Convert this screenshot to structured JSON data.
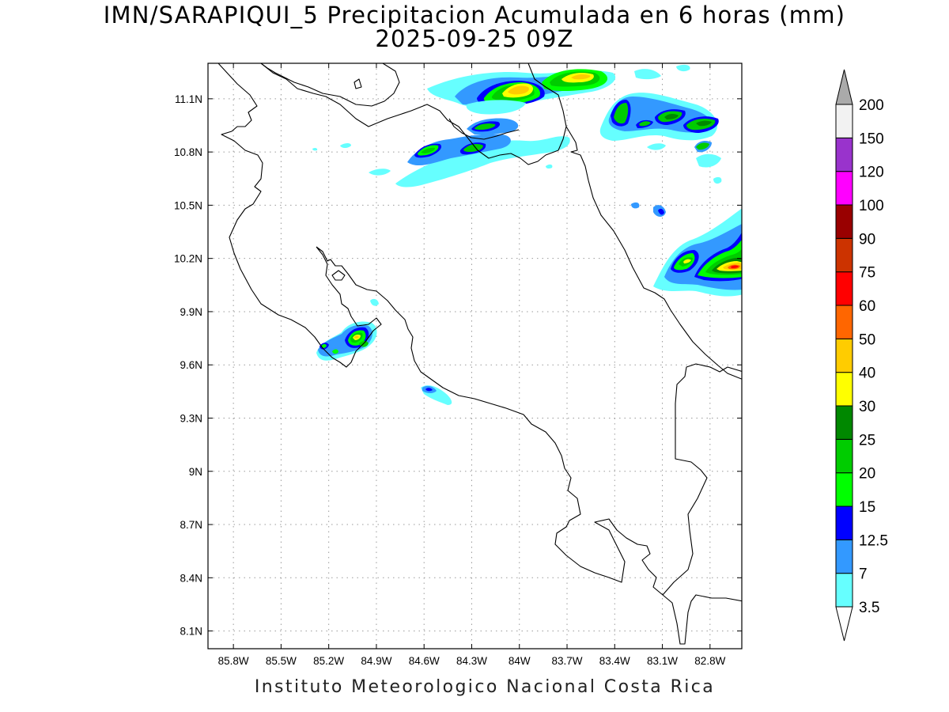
{
  "title": {
    "line1": "IMN/SARAPIQUI_5 Precipitacion Acumulada en 6 horas (mm)",
    "line2": "2025-09-25 09Z"
  },
  "footer": "Instituto Meteorologico Nacional Costa Rica",
  "map": {
    "lon_range": [
      -85.96,
      -82.6
    ],
    "lat_range": [
      8.0,
      11.3
    ],
    "lon_ticks": [
      {
        "value": -85.8,
        "label": "85.8W"
      },
      {
        "value": -85.5,
        "label": "85.5W"
      },
      {
        "value": -85.2,
        "label": "85.2W"
      },
      {
        "value": -84.9,
        "label": "84.9W"
      },
      {
        "value": -84.6,
        "label": "84.6W"
      },
      {
        "value": -84.3,
        "label": "84.3W"
      },
      {
        "value": -84.0,
        "label": "84W"
      },
      {
        "value": -83.7,
        "label": "83.7W"
      },
      {
        "value": -83.4,
        "label": "83.4W"
      },
      {
        "value": -83.1,
        "label": "83.1W"
      },
      {
        "value": -82.8,
        "label": "82.8W"
      }
    ],
    "lat_ticks": [
      {
        "value": 11.1,
        "label": "11.1N"
      },
      {
        "value": 10.8,
        "label": "10.8N"
      },
      {
        "value": 10.5,
        "label": "10.5N"
      },
      {
        "value": 10.2,
        "label": "10.2N"
      },
      {
        "value": 9.9,
        "label": "9.9N"
      },
      {
        "value": 9.6,
        "label": "9.6N"
      },
      {
        "value": 9.3,
        "label": "9.3N"
      },
      {
        "value": 9.0,
        "label": "9N"
      },
      {
        "value": 8.7,
        "label": "8.7N"
      },
      {
        "value": 8.4,
        "label": "8.4N"
      },
      {
        "value": 8.1,
        "label": "8.1N"
      }
    ],
    "grid": true
  },
  "colorbar": {
    "units": "mm",
    "levels": [
      {
        "value": "3.5",
        "color": "#66ffff"
      },
      {
        "value": "7",
        "color": "#3399ff"
      },
      {
        "value": "12.5",
        "color": "#0000ff"
      },
      {
        "value": "15",
        "color": "#00ff00"
      },
      {
        "value": "20",
        "color": "#00cc00"
      },
      {
        "value": "25",
        "color": "#008800"
      },
      {
        "value": "30",
        "color": "#ffff00"
      },
      {
        "value": "40",
        "color": "#ffcc00"
      },
      {
        "value": "50",
        "color": "#ff6600"
      },
      {
        "value": "60",
        "color": "#ff0000"
      },
      {
        "value": "75",
        "color": "#cc3300"
      },
      {
        "value": "90",
        "color": "#990000"
      },
      {
        "value": "100",
        "color": "#ff00ff"
      },
      {
        "value": "120",
        "color": "#9933cc"
      },
      {
        "value": "150",
        "color": "#f2f2f2"
      },
      {
        "value": "200",
        "color": "#aaaaaa"
      }
    ],
    "under_color": "#ffffff",
    "over_color": "#aaaaaa"
  },
  "precip_cells": [
    {
      "lon": -83.96,
      "lat": 11.15,
      "max_mm": 40
    },
    {
      "lon": -83.55,
      "lat": 11.18,
      "max_mm": 40
    },
    {
      "lon": -84.26,
      "lat": 10.93,
      "max_mm": 20
    },
    {
      "lon": -84.55,
      "lat": 10.8,
      "max_mm": 20
    },
    {
      "lon": -84.28,
      "lat": 10.82,
      "max_mm": 20
    },
    {
      "lon": -83.32,
      "lat": 11.0,
      "max_mm": 25
    },
    {
      "lon": -83.0,
      "lat": 11.0,
      "max_mm": 25
    },
    {
      "lon": -82.85,
      "lat": 10.97,
      "max_mm": 25
    },
    {
      "lon": -82.84,
      "lat": 10.81,
      "max_mm": 20
    },
    {
      "lon": -85.22,
      "lat": 10.93,
      "max_mm": 12.5
    },
    {
      "lon": -82.66,
      "lat": 10.15,
      "max_mm": 60
    },
    {
      "lon": -82.96,
      "lat": 10.2,
      "max_mm": 30
    },
    {
      "lon": -85.04,
      "lat": 9.75,
      "max_mm": 40
    },
    {
      "lon": -85.24,
      "lat": 9.71,
      "max_mm": 15
    },
    {
      "lon": -84.58,
      "lat": 9.46,
      "max_mm": 12.5
    }
  ]
}
